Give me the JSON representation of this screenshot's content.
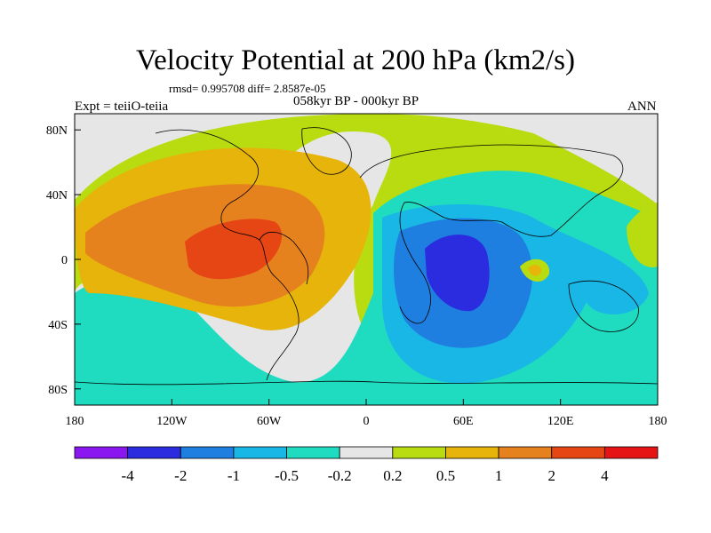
{
  "title": "Velocity Potential at 200 hPa (km2/s)",
  "stats_line": "rmsd= 0.995708 diff= 2.8587e-05",
  "subtitle": "058kyr BP - 000kyr BP",
  "experiment_label": "Expt = teiiO-teiia",
  "season_label": "ANN",
  "map": {
    "lon_range": [
      -180,
      180
    ],
    "lat_range": [
      -90,
      90
    ],
    "x_ticks": [
      "180",
      "120W",
      "60W",
      "0",
      "60E",
      "120E",
      "180"
    ],
    "y_ticks": [
      "80N",
      "40N",
      "0",
      "40S",
      "80S"
    ]
  },
  "colorbar": {
    "labels": [
      "-4",
      "-2",
      "-1",
      "-0.5",
      "-0.2",
      "0.2",
      "0.5",
      "1",
      "2",
      "4"
    ],
    "colors": [
      "#8a17f0",
      "#2b2be0",
      "#1f7fe0",
      "#19b7e6",
      "#1fdcc0",
      "#e6e6e6",
      "#b8dc10",
      "#e6b40a",
      "#e6821e",
      "#e64614",
      "#e61414"
    ]
  },
  "field_colors": {
    "gray": "#e6e6e6",
    "teal": "#1fdcc0",
    "cyan": "#19b7e6",
    "blue": "#1f7fe0",
    "deepblue": "#2b2be0",
    "lime": "#b8dc10",
    "gold": "#e6b40a",
    "orange": "#e6821e",
    "redorange": "#e64614"
  }
}
